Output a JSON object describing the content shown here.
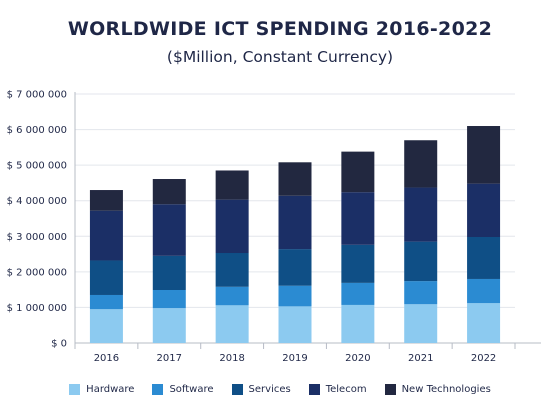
{
  "chart_data": {
    "type": "bar",
    "stacked": true,
    "title": "WORLDWIDE ICT SPENDING 2016-2022",
    "subtitle": "($Million, Constant Currency)",
    "xlabel": "",
    "ylabel": "",
    "categories": [
      "2016",
      "2017",
      "2018",
      "2019",
      "2020",
      "2021",
      "2022"
    ],
    "ylim": [
      0,
      7000000
    ],
    "yticks": [
      0,
      1000000,
      2000000,
      3000000,
      4000000,
      5000000,
      6000000,
      7000000
    ],
    "ytick_labels": [
      "$ 0",
      "$ 1 000 000",
      "$ 2 000 000",
      "$ 3 000 000",
      "$ 4 000 000",
      "$ 5 000 000",
      "$ 6 000 000",
      "$ 7 000 000"
    ],
    "grid": true,
    "legend": "bottom",
    "series": [
      {
        "name": "Hardware",
        "color": "#8ccaf0",
        "values": [
          950000,
          980000,
          1060000,
          1030000,
          1070000,
          1090000,
          1120000
        ]
      },
      {
        "name": "Software",
        "color": "#2b8bd2",
        "values": [
          400000,
          510000,
          520000,
          580000,
          620000,
          650000,
          680000
        ]
      },
      {
        "name": "Services",
        "color": "#0f4f86",
        "values": [
          970000,
          960000,
          950000,
          1030000,
          1070000,
          1110000,
          1180000
        ]
      },
      {
        "name": "Telecom",
        "color": "#1b2f66",
        "values": [
          1400000,
          1450000,
          1500000,
          1500000,
          1480000,
          1520000,
          1500000
        ]
      },
      {
        "name": "New Technologies",
        "color": "#222840",
        "values": [
          580000,
          710000,
          820000,
          940000,
          1140000,
          1330000,
          1620000
        ]
      }
    ]
  }
}
